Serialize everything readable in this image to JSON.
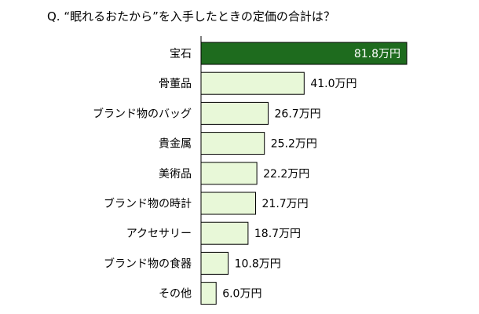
{
  "chart_data": {
    "type": "bar",
    "orientation": "horizontal",
    "title": "Q. “眠れるおたから”を入手したときの定価の合計は？",
    "xlabel": "",
    "ylabel": "",
    "xlim": [
      0,
      81.8
    ],
    "grid": false,
    "categories": [
      "宝石",
      "骨董品",
      "ブランド物のバッグ",
      "貴金属",
      "美術品",
      "ブランド物の時計",
      "アクセサリー",
      "ブランド物の食器",
      "その他"
    ],
    "values": [
      81.8,
      41.0,
      26.7,
      25.2,
      22.2,
      21.7,
      18.7,
      10.8,
      6.0
    ],
    "value_labels": [
      "81.8万円",
      "41.0万円",
      "26.7万円",
      "25.2万円",
      "22.2万円",
      "21.7万円",
      "18.7万円",
      "10.8万円",
      "6.0万円"
    ],
    "colors": {
      "highlight_fill": "#1e6b1e",
      "bar_fill": "#e8f8d8",
      "bar_stroke": "#000000",
      "axis": "#000000"
    }
  }
}
